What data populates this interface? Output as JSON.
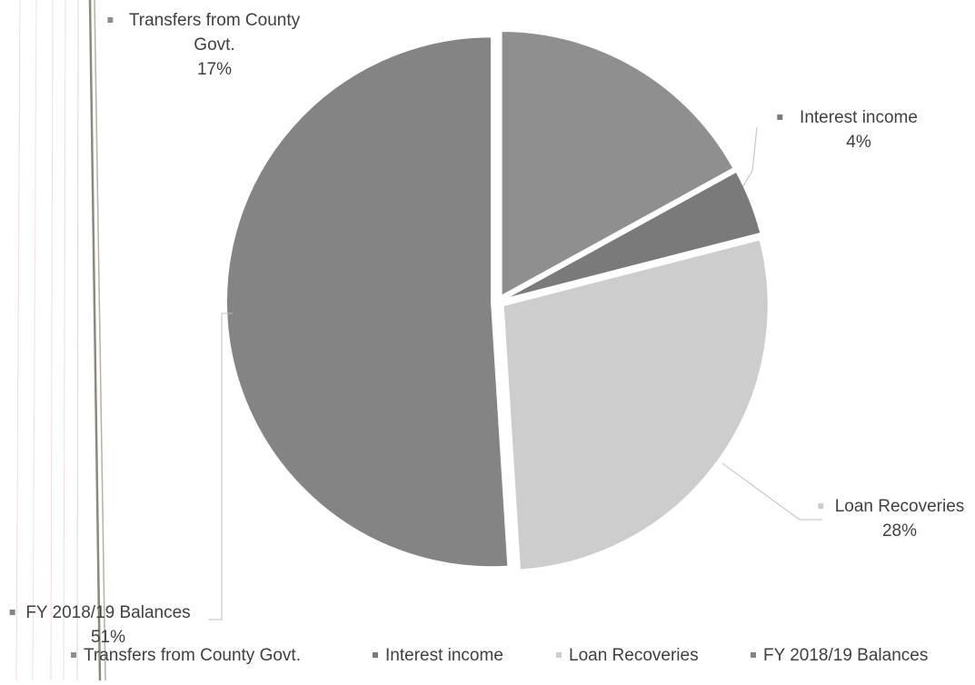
{
  "chart_data": {
    "type": "pie",
    "title": "",
    "slices": [
      {
        "name": "Transfers from County Govt.",
        "label_lines": [
          "Transfers from County",
          "Govt."
        ],
        "percent_label": "17%",
        "value": 17,
        "color": "#8f8f8f"
      },
      {
        "name": "Interest income",
        "label_lines": [
          "Interest income"
        ],
        "percent_label": "4%",
        "value": 4,
        "color": "#7a7a7a"
      },
      {
        "name": "Loan Recoveries",
        "label_lines": [
          "Loan Recoveries"
        ],
        "percent_label": "28%",
        "value": 28,
        "color": "#cdcdcd"
      },
      {
        "name": "FY 2018/19 Balances",
        "label_lines": [
          "FY 2018/19 Balances"
        ],
        "percent_label": "51%",
        "value": 51,
        "color": "#848484"
      }
    ],
    "legend": {
      "position": "bottom",
      "items": [
        "Transfers from County Govt.",
        "Interest income",
        "Loan Recoveries",
        "FY 2018/19 Balances"
      ]
    }
  }
}
